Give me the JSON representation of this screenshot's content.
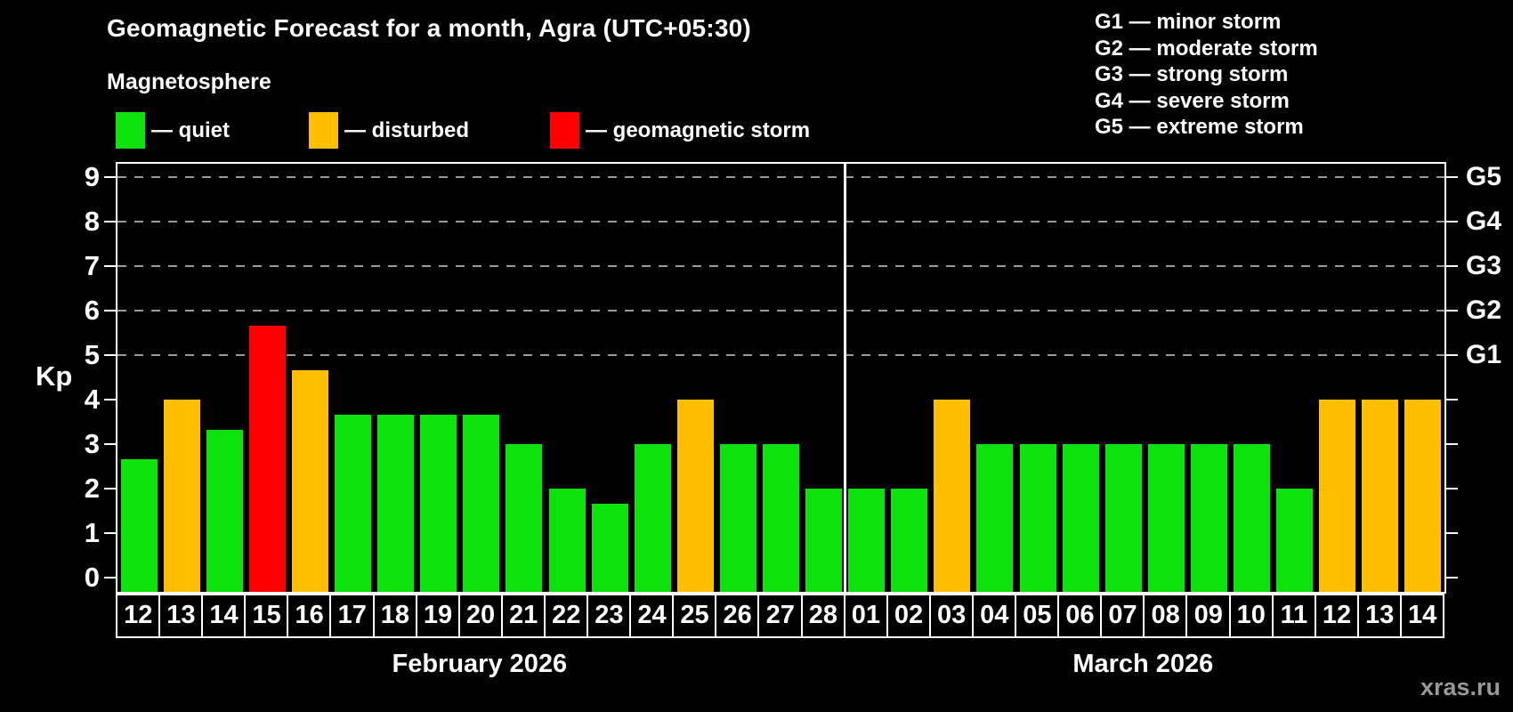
{
  "header": {
    "title": "Geomagnetic Forecast for a month, Agra (UTC+05:30)",
    "subtitle": "Magnetosphere"
  },
  "legend": {
    "items": [
      {
        "key": "quiet",
        "label": "— quiet"
      },
      {
        "key": "disturbed",
        "label": "— disturbed"
      },
      {
        "key": "storm",
        "label": "— geomagnetic storm"
      }
    ]
  },
  "g_legend": {
    "lines": [
      "G1 — minor storm",
      "G2 — moderate storm",
      "G3 — strong storm",
      "G4 — severe storm",
      "G5 — extreme storm"
    ]
  },
  "colors": {
    "quiet": "#0be30b",
    "disturbed": "#ffbe00",
    "storm": "#fe0000",
    "grid": "#9a9a9a",
    "axis": "#ffffff",
    "watermark": "#999999"
  },
  "watermark": "xras.ru",
  "chart_data": {
    "type": "bar",
    "title": "Geomagnetic Forecast for a month, Agra (UTC+05:30)",
    "subtitle": "Magnetosphere",
    "ylabel": "Kp",
    "ylim": [
      0,
      9.4
    ],
    "grid_levels_kp": [
      5,
      6,
      7,
      8,
      9
    ],
    "y_ticks": [
      "0",
      "1",
      "2",
      "3",
      "4",
      "5",
      "6",
      "7",
      "8",
      "9"
    ],
    "right_axis_labels": [
      {
        "kp": 5,
        "label": "G1"
      },
      {
        "kp": 6,
        "label": "G2"
      },
      {
        "kp": 7,
        "label": "G3"
      },
      {
        "kp": 8,
        "label": "G4"
      },
      {
        "kp": 9,
        "label": "G5"
      }
    ],
    "months": [
      {
        "label": "February 2026",
        "days": 17
      },
      {
        "label": "March 2026",
        "days": 14
      }
    ],
    "days": [
      {
        "month": "February 2026",
        "day": "12",
        "kp": 2.67,
        "level": "quiet"
      },
      {
        "month": "February 2026",
        "day": "13",
        "kp": 4,
        "level": "disturbed"
      },
      {
        "month": "February 2026",
        "day": "14",
        "kp": 3.33,
        "level": "quiet"
      },
      {
        "month": "February 2026",
        "day": "15",
        "kp": 5.67,
        "level": "storm"
      },
      {
        "month": "February 2026",
        "day": "16",
        "kp": 4.67,
        "level": "disturbed"
      },
      {
        "month": "February 2026",
        "day": "17",
        "kp": 3.67,
        "level": "quiet"
      },
      {
        "month": "February 2026",
        "day": "18",
        "kp": 3.67,
        "level": "quiet"
      },
      {
        "month": "February 2026",
        "day": "19",
        "kp": 3.67,
        "level": "quiet"
      },
      {
        "month": "February 2026",
        "day": "20",
        "kp": 3.67,
        "level": "quiet"
      },
      {
        "month": "February 2026",
        "day": "21",
        "kp": 3,
        "level": "quiet"
      },
      {
        "month": "February 2026",
        "day": "22",
        "kp": 2,
        "level": "quiet"
      },
      {
        "month": "February 2026",
        "day": "23",
        "kp": 1.67,
        "level": "quiet"
      },
      {
        "month": "February 2026",
        "day": "24",
        "kp": 3,
        "level": "quiet"
      },
      {
        "month": "February 2026",
        "day": "25",
        "kp": 4,
        "level": "disturbed"
      },
      {
        "month": "February 2026",
        "day": "26",
        "kp": 3,
        "level": "quiet"
      },
      {
        "month": "February 2026",
        "day": "27",
        "kp": 3,
        "level": "quiet"
      },
      {
        "month": "February 2026",
        "day": "28",
        "kp": 2,
        "level": "quiet"
      },
      {
        "month": "March 2026",
        "day": "01",
        "kp": 2,
        "level": "quiet"
      },
      {
        "month": "March 2026",
        "day": "02",
        "kp": 2,
        "level": "quiet"
      },
      {
        "month": "March 2026",
        "day": "03",
        "kp": 4,
        "level": "disturbed"
      },
      {
        "month": "March 2026",
        "day": "04",
        "kp": 3,
        "level": "quiet"
      },
      {
        "month": "March 2026",
        "day": "05",
        "kp": 3,
        "level": "quiet"
      },
      {
        "month": "March 2026",
        "day": "06",
        "kp": 3,
        "level": "quiet"
      },
      {
        "month": "March 2026",
        "day": "07",
        "kp": 3,
        "level": "quiet"
      },
      {
        "month": "March 2026",
        "day": "08",
        "kp": 3,
        "level": "quiet"
      },
      {
        "month": "March 2026",
        "day": "09",
        "kp": 3,
        "level": "quiet"
      },
      {
        "month": "March 2026",
        "day": "10",
        "kp": 3,
        "level": "quiet"
      },
      {
        "month": "March 2026",
        "day": "11",
        "kp": 2,
        "level": "quiet"
      },
      {
        "month": "March 2026",
        "day": "12",
        "kp": 4,
        "level": "disturbed"
      },
      {
        "month": "March 2026",
        "day": "13",
        "kp": 4,
        "level": "disturbed"
      },
      {
        "month": "March 2026",
        "day": "14",
        "kp": 4,
        "level": "disturbed"
      }
    ]
  }
}
